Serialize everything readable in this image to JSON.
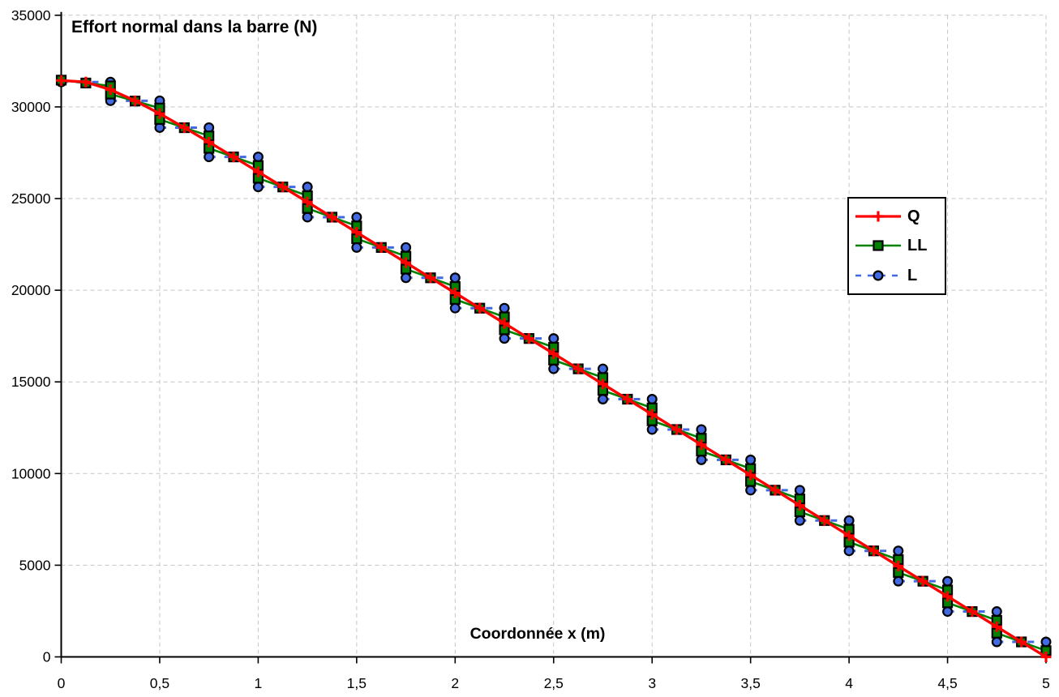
{
  "chart_data": {
    "type": "line",
    "title": "Effort normal dans la barre (N)",
    "xlabel": "Coordonnée x (m)",
    "ylabel": "",
    "xlim": [
      0,
      5
    ],
    "ylim": [
      0,
      35000
    ],
    "x_major_step": 0.5,
    "y_major_step": 5000,
    "x_tick_labels": [
      "0",
      "0,5",
      "1",
      "1,5",
      "2",
      "2,5",
      "3",
      "3,5",
      "4",
      "4,5",
      "5"
    ],
    "y_tick_labels": [
      "0",
      "5000",
      "10000",
      "15000",
      "20000",
      "25000",
      "30000",
      "35000"
    ],
    "grid": true,
    "grid_style": "dashed",
    "grid_color": "#c5c5c5",
    "axis_color": "#000000",
    "background": "#ffffff",
    "legend_position": "right-center",
    "series": [
      {
        "name": "Q",
        "kind": "smooth-curve",
        "color": "#ff0000",
        "marker": "plus",
        "line_style": "solid",
        "marker_interval": 0.125,
        "x": [
          0,
          0.125,
          0.25,
          0.375,
          0.5,
          0.625,
          0.75,
          0.875,
          1,
          1.125,
          1.25,
          1.375,
          1.5,
          1.625,
          1.75,
          1.875,
          2,
          2.125,
          2.25,
          2.375,
          2.5,
          2.625,
          2.75,
          2.875,
          3,
          3.125,
          3.25,
          3.375,
          3.5,
          3.625,
          3.75,
          3.875,
          4,
          4.125,
          4.25,
          4.375,
          4.5,
          4.625,
          4.75,
          4.875,
          5
        ],
        "values": [
          31440,
          31357,
          30938,
          30335,
          29630,
          28871,
          28080,
          27273,
          26456,
          25635,
          24811,
          23985,
          23159,
          22332,
          21505,
          20678,
          19850,
          19023,
          18195,
          17368,
          16540,
          15713,
          14885,
          14058,
          13230,
          12403,
          11575,
          10748,
          9920,
          9093,
          8265,
          7438,
          6610,
          5783,
          4955,
          4128,
          3300,
          2473,
          1645,
          818,
          0
        ]
      },
      {
        "name": "LL",
        "kind": "element-linear",
        "color": "#008200",
        "marker": "square",
        "line_style": "solid",
        "element_format": [
          "x_start",
          "x_end",
          "n_start",
          "n_end"
        ],
        "elements": [
          [
            0,
            0.25,
            31460,
            31145
          ],
          [
            0.25,
            0.5,
            30700,
            29937
          ],
          [
            0.5,
            0.75,
            29314,
            28417
          ],
          [
            0.75,
            1,
            27741,
            26802
          ],
          [
            1,
            1.25,
            26110,
            25154
          ],
          [
            1.25,
            1.5,
            24462,
            23508
          ],
          [
            1.5,
            1.75,
            22810,
            21855
          ],
          [
            1.75,
            2,
            21155,
            20199
          ],
          [
            2,
            2.25,
            19500,
            18544
          ],
          [
            2.25,
            2.5,
            17845,
            16889
          ],
          [
            2.5,
            2.75,
            16190,
            15234
          ],
          [
            2.75,
            3,
            14535,
            13579
          ],
          [
            3,
            3.25,
            12880,
            11924
          ],
          [
            3.25,
            3.5,
            11225,
            10269
          ],
          [
            3.5,
            3.75,
            9570,
            8614
          ],
          [
            3.75,
            4,
            7915,
            6959
          ],
          [
            4,
            4.25,
            6260,
            5304
          ],
          [
            4.25,
            4.5,
            4605,
            3649
          ],
          [
            4.5,
            4.75,
            2950,
            1994
          ],
          [
            4.75,
            5,
            1295,
            339
          ]
        ]
      },
      {
        "name": "L",
        "kind": "element-constant",
        "color": "#4169e1",
        "marker": "circle",
        "line_style": "dashed",
        "element_format": [
          "x_start",
          "x_end",
          "n_value"
        ],
        "elements": [
          [
            0,
            0.25,
            31357
          ],
          [
            0.25,
            0.5,
            30335
          ],
          [
            0.5,
            0.75,
            28871
          ],
          [
            0.75,
            1,
            27273
          ],
          [
            1,
            1.25,
            25635
          ],
          [
            1.25,
            1.5,
            23985
          ],
          [
            1.5,
            1.75,
            22332
          ],
          [
            1.75,
            2,
            20678
          ],
          [
            2,
            2.25,
            19023
          ],
          [
            2.25,
            2.5,
            17368
          ],
          [
            2.5,
            2.75,
            15713
          ],
          [
            2.75,
            3,
            14058
          ],
          [
            3,
            3.25,
            12403
          ],
          [
            3.25,
            3.5,
            10748
          ],
          [
            3.5,
            3.75,
            9093
          ],
          [
            3.75,
            4,
            7438
          ],
          [
            4,
            4.25,
            5783
          ],
          [
            4.25,
            4.5,
            4128
          ],
          [
            4.5,
            4.75,
            2473
          ],
          [
            4.75,
            5,
            818
          ]
        ]
      }
    ]
  },
  "legend": {
    "items": [
      "Q",
      "LL",
      "L"
    ]
  }
}
